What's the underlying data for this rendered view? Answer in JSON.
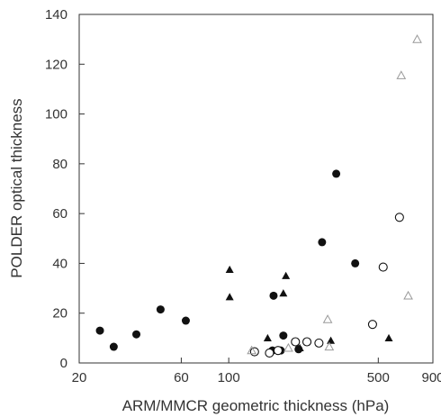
{
  "chart_data": {
    "type": "scatter",
    "xlabel": "ARM/MMCR geometric thickness (hPa)",
    "ylabel": "POLDER optical thickness",
    "xscale": "log",
    "xlim": [
      20,
      900
    ],
    "ylim": [
      0,
      140
    ],
    "grid": false,
    "x_ticks": [
      {
        "value": 20,
        "label": "20"
      },
      {
        "value": 60,
        "label": "60"
      },
      {
        "value": 100,
        "label": "100"
      },
      {
        "value": 500,
        "label": "500"
      },
      {
        "value": 900,
        "label": "900"
      }
    ],
    "y_ticks": [
      {
        "value": 0,
        "label": "0"
      },
      {
        "value": 20,
        "label": "20"
      },
      {
        "value": 40,
        "label": "40"
      },
      {
        "value": 60,
        "label": "60"
      },
      {
        "value": 80,
        "label": "80"
      },
      {
        "value": 100,
        "label": "100"
      },
      {
        "value": 120,
        "label": "120"
      },
      {
        "value": 140,
        "label": "140"
      }
    ],
    "series": [
      {
        "marker": "filled-circle",
        "color": "#111111",
        "points": [
          [
            25,
            13
          ],
          [
            29,
            6.5
          ],
          [
            37,
            11.5
          ],
          [
            48,
            21.5
          ],
          [
            63,
            17
          ],
          [
            162,
            27
          ],
          [
            180,
            11
          ],
          [
            160,
            5
          ],
          [
            175,
            5
          ],
          [
            212,
            5.5
          ],
          [
            273,
            48.5
          ],
          [
            318,
            76
          ],
          [
            390,
            40
          ]
        ]
      },
      {
        "marker": "open-circle",
        "color": "#111111",
        "points": [
          [
            132,
            4.5
          ],
          [
            155,
            4
          ],
          [
            170,
            5
          ],
          [
            205,
            8.5
          ],
          [
            232,
            8.5
          ],
          [
            264,
            8
          ],
          [
            470,
            15.5
          ],
          [
            527,
            38.5
          ],
          [
            628,
            58.5
          ]
        ]
      },
      {
        "marker": "filled-triangle",
        "color": "#111111",
        "points": [
          [
            101,
            37.5
          ],
          [
            101,
            26.5
          ],
          [
            152,
            10
          ],
          [
            185,
            35
          ],
          [
            180,
            28
          ],
          [
            215,
            6
          ],
          [
            300,
            9
          ],
          [
            560,
            10
          ]
        ]
      },
      {
        "marker": "open-triangle",
        "color": "#999999",
        "points": [
          [
            128,
            5
          ],
          [
            190,
            6
          ],
          [
            290,
            17.5
          ],
          [
            295,
            6.5
          ],
          [
            640,
            115.5
          ],
          [
            690,
            27
          ],
          [
            760,
            130
          ]
        ]
      }
    ]
  }
}
